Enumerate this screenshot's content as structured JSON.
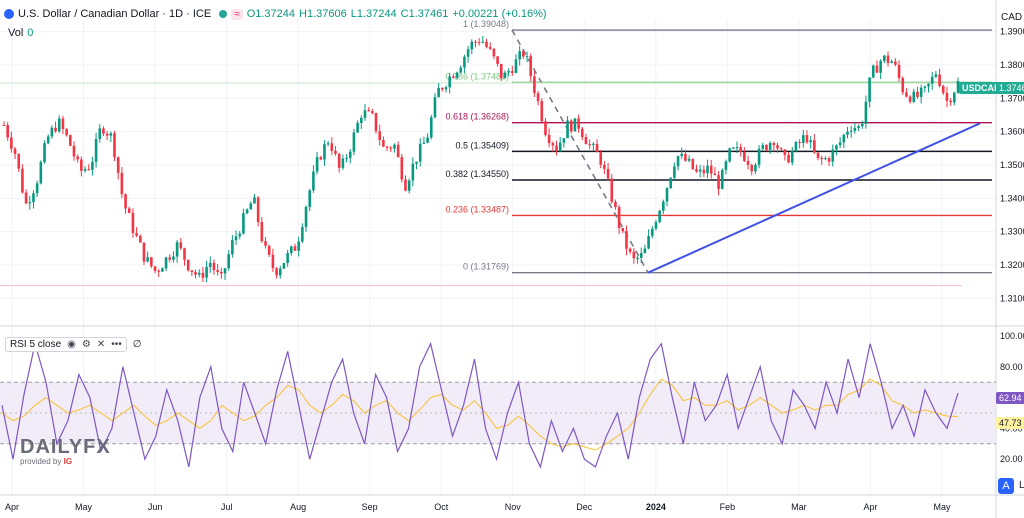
{
  "header": {
    "symbol_title": "U.S. Dollar / Canadian Dollar · 1D · ICE",
    "wave_icon": "≈",
    "ohlc": {
      "open": "O1.37244",
      "high": "H1.37606",
      "low": "L1.37244",
      "close": "C1.37461",
      "change": "+0.00221 (+0.16%)"
    },
    "vol_label": "Vol",
    "vol_value": "0",
    "currency": "CAD"
  },
  "price_tags": {
    "symbol": "USDCAD",
    "last": "1.3746"
  },
  "rsi_legend": {
    "label": "RSI 5 close",
    "value": "∅"
  },
  "rsi_tags": {
    "rsi": "62.94",
    "ma": "47.73"
  },
  "watermark": {
    "brand": "DAILYFX",
    "provided_by": "provided by",
    "ig": "IG"
  },
  "buttons": {
    "auto": "A",
    "log": "L"
  },
  "chart_data": [
    {
      "type": "candlestick",
      "title": "U.S. Dollar / Canadian Dollar · 1D · ICE",
      "y_axis_ticks": [
        "1.3900",
        "1.3800",
        "1.3700",
        "1.3600",
        "1.3500",
        "1.3400",
        "1.3300",
        "1.3200",
        "1.3100"
      ],
      "ylim": [
        1.3065,
        1.3935
      ],
      "x_axis_ticks": [
        "Apr",
        "May",
        "Jun",
        "Jul",
        "Aug",
        "Sep",
        "Oct",
        "Nov",
        "Dec",
        "2024",
        "Feb",
        "Mar",
        "Apr",
        "May"
      ],
      "close_path": [
        1.362,
        1.354,
        1.338,
        1.345,
        1.358,
        1.363,
        1.357,
        1.348,
        1.35,
        1.362,
        1.358,
        1.339,
        1.33,
        1.322,
        1.318,
        1.322,
        1.326,
        1.32,
        1.316,
        1.321,
        1.315,
        1.326,
        1.333,
        1.34,
        1.325,
        1.318,
        1.322,
        1.326,
        1.34,
        1.352,
        1.358,
        1.348,
        1.356,
        1.366,
        1.364,
        1.355,
        1.356,
        1.344,
        1.352,
        1.358,
        1.372,
        1.376,
        1.38,
        1.386,
        1.388,
        1.383,
        1.376,
        1.38,
        1.384,
        1.372,
        1.36,
        1.355,
        1.362,
        1.362,
        1.356,
        1.352,
        1.341,
        1.329,
        1.321,
        1.323,
        1.333,
        1.342,
        1.353,
        1.351,
        1.347,
        1.349,
        1.344,
        1.354,
        1.354,
        1.35,
        1.355,
        1.358,
        1.351,
        1.355,
        1.359,
        1.351,
        1.352,
        1.356,
        1.362,
        1.361,
        1.377,
        1.382,
        1.381,
        1.372,
        1.37,
        1.372,
        1.378,
        1.369,
        1.3746
      ],
      "fibonacci_levels": [
        {
          "ratio": "1",
          "label": "1 (1.39048)",
          "price": 1.39048,
          "color": "#787b86"
        },
        {
          "ratio": "0.786",
          "label": "0.786 (1.37481)",
          "price": 1.37481,
          "color": "#81c784"
        },
        {
          "ratio": "0.618",
          "label": "0.618 (1.36268)",
          "price": 1.36268,
          "color": "#ad1457"
        },
        {
          "ratio": "0.5",
          "label": "0.5 (1.35409)",
          "price": 1.35409,
          "color": "#131722"
        },
        {
          "ratio": "0.382",
          "label": "0.382 (1.34550)",
          "price": 1.3455,
          "color": "#131722"
        },
        {
          "ratio": "0.236",
          "label": "0.236 (1.33487)",
          "price": 1.33487,
          "color": "#e53935"
        },
        {
          "ratio": "0",
          "label": "0 (1.31769)",
          "price": 1.31769,
          "color": "#787b86"
        }
      ],
      "trendline": {
        "from": [
          "2024-01 (low)",
          1.3177
        ],
        "to": [
          "May",
          1.3625
        ],
        "color": "#3f51e6"
      },
      "fib_anchor_line": {
        "from": 1.3905,
        "to": 1.3177,
        "style": "dashed"
      },
      "last_price": 1.3746,
      "colors": {
        "up": "#089981",
        "down": "#f23645"
      }
    },
    {
      "type": "line",
      "title": "RSI 5 close",
      "y_axis_ticks": [
        "100.00",
        "80.00",
        "60.00",
        "40.00",
        "20.00"
      ],
      "ylim": [
        0,
        100
      ],
      "bands": {
        "upper": 70,
        "lower": 30
      },
      "series": [
        {
          "name": "RSI",
          "color": "#7e57c2",
          "last": 62.94
        },
        {
          "name": "MA",
          "color": "#fbc02d",
          "last": 47.73
        }
      ],
      "rsi_values": [
        55,
        20,
        62,
        95,
        70,
        30,
        45,
        75,
        60,
        25,
        40,
        80,
        50,
        20,
        35,
        65,
        45,
        15,
        60,
        80,
        40,
        25,
        70,
        50,
        30,
        65,
        90,
        55,
        20,
        45,
        70,
        85,
        50,
        30,
        75,
        60,
        25,
        40,
        80,
        95,
        65,
        35,
        55,
        85,
        40,
        20,
        50,
        70,
        30,
        15,
        45,
        25,
        40,
        20,
        15,
        35,
        50,
        20,
        60,
        85,
        95,
        60,
        30,
        70,
        45,
        55,
        75,
        40,
        60,
        80,
        45,
        30,
        65,
        55,
        40,
        70,
        50,
        85,
        60,
        95,
        70,
        40,
        55,
        35,
        65,
        50,
        40,
        62.94
      ],
      "ma_values": [
        50,
        45,
        48,
        55,
        60,
        55,
        50,
        52,
        55,
        50,
        45,
        50,
        55,
        48,
        42,
        45,
        50,
        45,
        40,
        45,
        55,
        50,
        45,
        48,
        55,
        60,
        68,
        65,
        55,
        50,
        55,
        62,
        58,
        50,
        55,
        58,
        50,
        45,
        52,
        60,
        62,
        55,
        52,
        58,
        50,
        40,
        42,
        48,
        42,
        35,
        30,
        28,
        30,
        28,
        26,
        30,
        35,
        40,
        50,
        62,
        72,
        68,
        58,
        60,
        55,
        55,
        58,
        52,
        55,
        60,
        55,
        50,
        52,
        55,
        52,
        55,
        55,
        62,
        65,
        72,
        68,
        58,
        55,
        50,
        52,
        50,
        48,
        47.73
      ]
    }
  ]
}
